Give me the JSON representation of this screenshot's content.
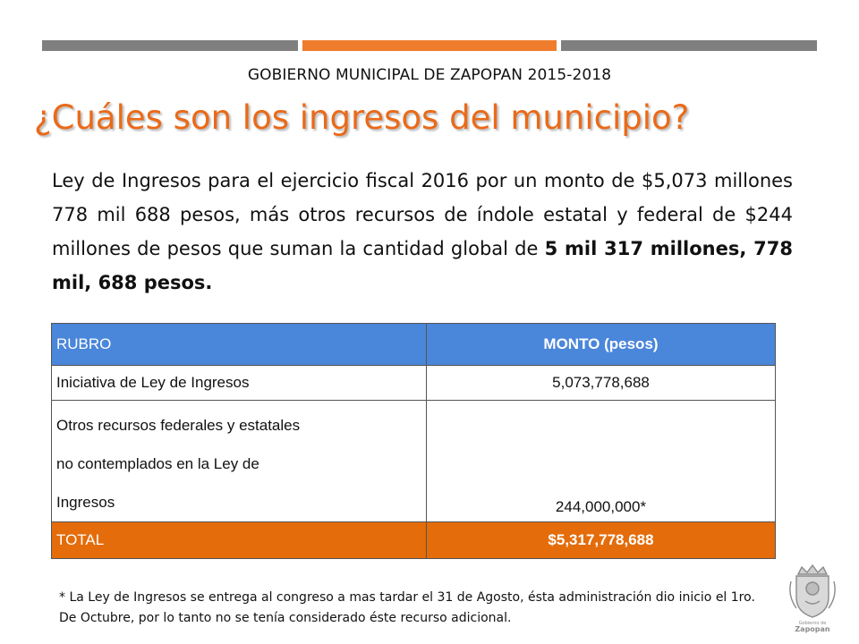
{
  "header": {
    "government": "GOBIERNO MUNICIPAL DE ZAPOPAN 2015-2018",
    "title": "¿Cuáles son los ingresos del municipio?"
  },
  "paragraph": {
    "text": "Ley de Ingresos para el ejercicio fiscal 2016 por un monto de $5,073 millones 778 mil 688 pesos, más otros recursos de índole estatal y federal de $244 millones de pesos que suman la cantidad global de ",
    "bold": "5 mil 317 millones, 778 mil, 688 pesos."
  },
  "table": {
    "headers": [
      "RUBRO",
      "MONTO (pesos)"
    ],
    "rows": [
      {
        "rubro": "Iniciativa de Ley de Ingresos",
        "monto": "5,073,778,688"
      },
      {
        "rubro_lines": [
          "Otros recursos federales y estatales",
          "no contemplados en la Ley de",
          "Ingresos"
        ],
        "monto": "244,000,000*"
      }
    ],
    "total": {
      "rubro": "TOTAL",
      "monto": "$5,317,778,688"
    }
  },
  "footnote": "* La Ley de Ingresos se entrega al congreso a mas tardar el 31 de Agosto, ésta administración dio inicio el 1ro. De Octubre, por lo tanto no se tenía considerado éste recurso adicional.",
  "logo": {
    "icon": "zapopan-coat-of-arms-icon",
    "text_small": "Gobierno de",
    "text": "Zapopan"
  },
  "colors": {
    "accent_orange": "#ef7d2d",
    "title_orange": "#ea6a19",
    "header_blue": "#4a86d9",
    "total_orange": "#e46c0a",
    "bar_gray": "#7f7f7f"
  }
}
